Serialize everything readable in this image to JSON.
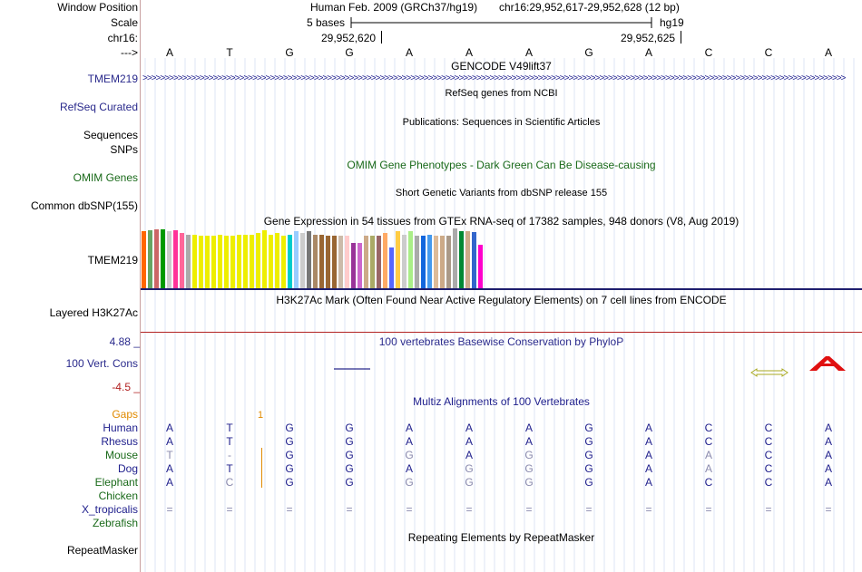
{
  "header": {
    "window_position_label": "Window Position",
    "scale_label": "Scale",
    "chrom_label": "chr16:",
    "arrow_label": "--->",
    "assembly_title": "Human Feb. 2009 (GRCh37/hg19)",
    "position_text": "chr16:29,952,617-29,952,628 (12 bp)",
    "scale_text": "5 bases",
    "scale_db": "hg19",
    "coord_1": "29,952,620",
    "coord_2": "29,952,625"
  },
  "sequence": [
    "A",
    "T",
    "G",
    "G",
    "A",
    "A",
    "A",
    "G",
    "A",
    "C",
    "C",
    "A"
  ],
  "tracks": {
    "gencode_title": "GENCODE V49lift37",
    "gencode_label": "TMEM219",
    "refseq_title": "RefSeq genes from NCBI",
    "refseq_label": "RefSeq Curated",
    "publications_title": "Publications: Sequences in Scientific Articles",
    "sequences_label": "Sequences",
    "snps_label": "SNPs",
    "omim_title": "OMIM Gene Phenotypes - Dark Green Can Be Disease-causing",
    "omim_label": "OMIM Genes",
    "dbsnp_title": "Short Genetic Variants from dbSNP release 155",
    "dbsnp_label": "Common dbSNP(155)",
    "gtex_title": "Gene Expression in 54 tissues from GTEx RNA-seq of 17382 samples, 948 donors (V8, Aug 2019)",
    "gtex_label": "TMEM219",
    "h3k27ac_title": "H3K27Ac Mark (Often Found Near Active Regulatory Elements) on 7 cell lines from ENCODE",
    "h3k27ac_label": "Layered H3K27Ac",
    "phylop_title": "100 vertebrates Basewise Conservation by PhyloP",
    "phylop_label": "100 Vert. Cons",
    "phylop_max": "4.88 _",
    "phylop_min": "-4.5 _",
    "multiz_title": "Multiz Alignments of 100 Vertebrates",
    "gaps_label": "Gaps",
    "gaps_value": "1",
    "repeat_title": "Repeating Elements by RepeatMasker",
    "repeat_label": "RepeatMasker"
  },
  "gtex_values": [
    0.95,
    0.97,
    0.98,
    0.99,
    0.96,
    0.97,
    0.92,
    0.9,
    0.9,
    0.88,
    0.88,
    0.88,
    0.9,
    0.88,
    0.88,
    0.9,
    0.9,
    0.9,
    0.93,
    0.97,
    0.9,
    0.93,
    0.88,
    0.9,
    0.95,
    0.93,
    0.95,
    0.9,
    0.9,
    0.88,
    0.88,
    0.88,
    0.88,
    0.76,
    0.75,
    0.88,
    0.88,
    0.88,
    0.92,
    0.68,
    0.95,
    0.9,
    0.96,
    0.88,
    0.88,
    0.9,
    0.88,
    0.88,
    0.88,
    1.0,
    0.95,
    0.95,
    0.94,
    0.72
  ],
  "gtex_colors": [
    "#ff6600",
    "#66a562",
    "#cc6666",
    "#009900",
    "#cccccc",
    "#ff3399",
    "#ff6699",
    "#aaaaaa",
    "#eeee00",
    "#eeee00",
    "#eeee00",
    "#eeee00",
    "#eeee00",
    "#eeee00",
    "#eeee00",
    "#eeee00",
    "#eeee00",
    "#eeee00",
    "#eeee00",
    "#eeee00",
    "#eeee00",
    "#eeee00",
    "#eeee00",
    "#00cccc",
    "#99ccff",
    "#cccccc",
    "#777777",
    "#aa8866",
    "#996633",
    "#996633",
    "#996633",
    "#ccbbaa",
    "#ffcccc",
    "#993399",
    "#cc66cc",
    "#ccaa88",
    "#aaaa66",
    "#996666",
    "#ffaa66",
    "#5566ff",
    "#ffcc44",
    "#cccccc",
    "#aaee88",
    "#aaaaaa",
    "#1166dd",
    "#4499ee",
    "#ddbb99",
    "#ccaa88",
    "#aa9988",
    "#aaaaaa",
    "#008833",
    "#ccaa88",
    "#3366cc",
    "#ff00cc"
  ],
  "alignments": [
    {
      "species": "Human",
      "color": "#1e1e8c",
      "bases": [
        "A",
        "T",
        "G",
        "G",
        "A",
        "A",
        "A",
        "G",
        "A",
        "C",
        "C",
        "A"
      ],
      "shade": [
        0,
        0,
        0,
        0,
        0,
        0,
        0,
        0,
        0,
        0,
        0,
        0
      ]
    },
    {
      "species": "Rhesus",
      "color": "#1e1e8c",
      "bases": [
        "A",
        "T",
        "G",
        "G",
        "A",
        "A",
        "A",
        "G",
        "A",
        "C",
        "C",
        "A"
      ],
      "shade": [
        0,
        0,
        0,
        0,
        0,
        0,
        0,
        0,
        0,
        0,
        0,
        0
      ]
    },
    {
      "species": "Mouse",
      "color": "#1a6a1a",
      "bases": [
        "T",
        "-",
        "G",
        "G",
        "G",
        "A",
        "G",
        "G",
        "A",
        "A",
        "C",
        "A"
      ],
      "shade": [
        1,
        1,
        0,
        0,
        1,
        0,
        1,
        0,
        0,
        1,
        0,
        0
      ]
    },
    {
      "species": "Dog",
      "color": "#1e1e8c",
      "bases": [
        "A",
        "T",
        "G",
        "G",
        "A",
        "G",
        "G",
        "G",
        "A",
        "A",
        "C",
        "A"
      ],
      "shade": [
        0,
        0,
        0,
        0,
        0,
        1,
        1,
        0,
        0,
        1,
        0,
        0
      ]
    },
    {
      "species": "Elephant",
      "color": "#1a6a1a",
      "bases": [
        "A",
        "C",
        "G",
        "G",
        "G",
        "G",
        "G",
        "G",
        "A",
        "C",
        "C",
        "A"
      ],
      "shade": [
        0,
        1,
        0,
        0,
        1,
        1,
        1,
        0,
        0,
        0,
        0,
        0
      ]
    },
    {
      "species": "Chicken",
      "color": "#1a6a1a",
      "bases": [
        "",
        "",
        "",
        "",
        "",
        "",
        "",
        "",
        "",
        "",
        "",
        ""
      ],
      "shade": [
        0,
        0,
        0,
        0,
        0,
        0,
        0,
        0,
        0,
        0,
        0,
        0
      ]
    },
    {
      "species": "X_tropicalis",
      "color": "#1e1e8c",
      "bases": [
        "=",
        "=",
        "=",
        "=",
        "=",
        "=",
        "=",
        "=",
        "=",
        "=",
        "=",
        "="
      ],
      "shade": [
        1,
        1,
        1,
        1,
        1,
        1,
        1,
        1,
        1,
        1,
        1,
        1
      ]
    },
    {
      "species": "Zebrafish",
      "color": "#1a6a1a",
      "bases": [
        "",
        "",
        "",
        "",
        "",
        "",
        "",
        "",
        "",
        "",
        "",
        ""
      ],
      "shade": [
        0,
        0,
        0,
        0,
        0,
        0,
        0,
        0,
        0,
        0,
        0,
        0
      ]
    }
  ]
}
